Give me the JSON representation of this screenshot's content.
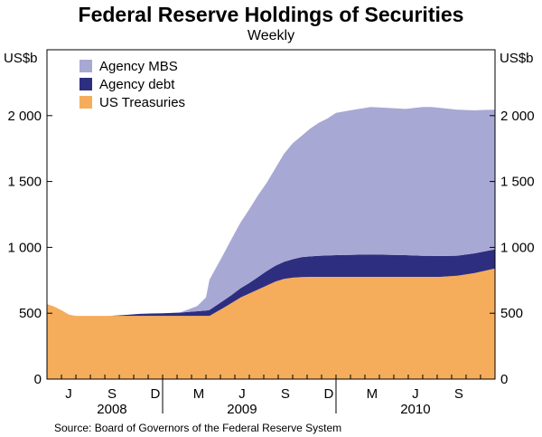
{
  "chart_data": {
    "type": "area",
    "stacked": true,
    "title": "Federal Reserve Holdings of Securities",
    "subtitle": "Weekly",
    "ylabel_left": "US$b",
    "ylabel_right": "US$b",
    "ylim": [
      0,
      2500
    ],
    "yticks": [
      0,
      500,
      1000,
      1500,
      2000
    ],
    "ytick_labels": [
      "0",
      "500",
      "1 000",
      "1 500",
      "2 000"
    ],
    "xlim": [
      2008.333,
      2010.917
    ],
    "months": [
      {
        "label": "J",
        "t": 2008.458
      },
      {
        "label": "S",
        "t": 2008.708
      },
      {
        "label": "D",
        "t": 2008.958
      },
      {
        "label": "M",
        "t": 2009.208
      },
      {
        "label": "J",
        "t": 2009.458
      },
      {
        "label": "S",
        "t": 2009.708
      },
      {
        "label": "D",
        "t": 2009.958
      },
      {
        "label": "M",
        "t": 2010.208
      },
      {
        "label": "J",
        "t": 2010.458
      },
      {
        "label": "S",
        "t": 2010.708
      }
    ],
    "years": [
      {
        "label": "2008",
        "t": 2008.708
      },
      {
        "label": "2009",
        "t": 2009.458
      },
      {
        "label": "2010",
        "t": 2010.458
      }
    ],
    "legend": [
      {
        "name": "Agency MBS",
        "color": "#a8a8d4"
      },
      {
        "name": "Agency debt",
        "color": "#2e2e80"
      },
      {
        "name": "US Treasuries",
        "color": "#f5ad5b"
      }
    ],
    "x": [
      2008.333,
      2008.375,
      2008.42,
      2008.46,
      2008.5,
      2008.6,
      2008.7,
      2008.8,
      2008.87,
      2008.93,
      2009.0,
      2009.1,
      2009.2,
      2009.25,
      2009.27,
      2009.35,
      2009.4,
      2009.45,
      2009.5,
      2009.55,
      2009.6,
      2009.65,
      2009.7,
      2009.75,
      2009.8,
      2009.85,
      2009.9,
      2009.95,
      2010.0,
      2010.1,
      2010.2,
      2010.3,
      2010.4,
      2010.5,
      2010.55,
      2010.6,
      2010.7,
      2010.8,
      2010.85,
      2010.917
    ],
    "series": [
      {
        "name": "US Treasuries",
        "values": [
          570,
          550,
          520,
          490,
          480,
          480,
          480,
          480,
          480,
          480,
          480,
          480,
          480,
          480,
          480,
          540,
          580,
          620,
          650,
          680,
          710,
          740,
          760,
          770,
          775,
          776,
          776,
          776,
          776,
          776,
          776,
          776,
          776,
          776,
          776,
          776,
          785,
          805,
          820,
          840
        ]
      },
      {
        "name": "Agency debt",
        "values": [
          0,
          0,
          0,
          0,
          0,
          0,
          0,
          8,
          15,
          18,
          20,
          25,
          35,
          40,
          45,
          55,
          60,
          70,
          80,
          95,
          110,
          120,
          130,
          140,
          150,
          155,
          160,
          162,
          165,
          168,
          170,
          168,
          165,
          160,
          160,
          158,
          152,
          150,
          148,
          145
        ]
      },
      {
        "name": "Agency MBS",
        "values": [
          0,
          0,
          0,
          0,
          0,
          0,
          0,
          0,
          0,
          0,
          0,
          0,
          40,
          100,
          230,
          350,
          430,
          500,
          560,
          620,
          670,
          740,
          820,
          880,
          920,
          970,
          1010,
          1040,
          1080,
          1100,
          1120,
          1115,
          1110,
          1130,
          1130,
          1125,
          1108,
          1085,
          1075,
          1060
        ]
      }
    ],
    "source": "Source: Board of Governors of the Federal Reserve System"
  }
}
